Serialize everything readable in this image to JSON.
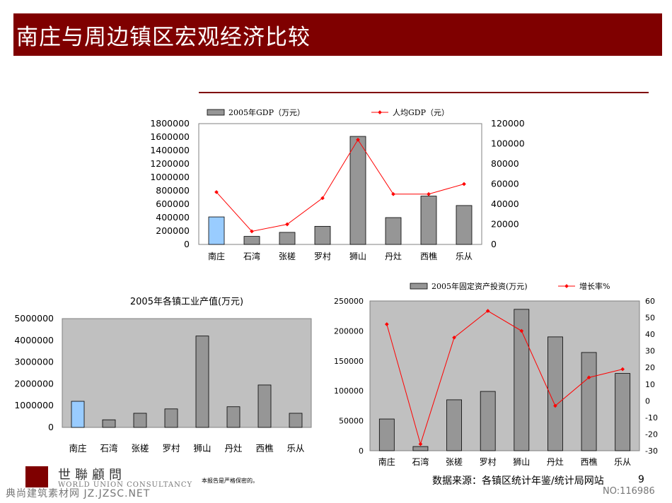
{
  "header": {
    "title": "南庄与周边镇区宏观经济比较"
  },
  "footer": {
    "logo_cn": "世聯顧問",
    "logo_en": "WORLD UNION CONSULTANCY",
    "confidential": "本报告是严格保密的。",
    "source": "数据来源：各镇区统计年鉴/统计局网站",
    "page": "9",
    "watermark_left": "典尚建筑素材网 JZ.JZSC.NET",
    "watermark_right": "NO:116986"
  },
  "colors": {
    "bar": "#969696",
    "highlight_bar": "#99ccff",
    "line": "#ff0000",
    "plot_bg": "#c0c0c0",
    "brand": "#7f0000"
  },
  "chart_data": [
    {
      "id": "gdp",
      "type": "bar+line",
      "title": "",
      "categories": [
        "南庄",
        "石湾",
        "张槎",
        "罗村",
        "狮山",
        "丹灶",
        "西樵",
        "乐从"
      ],
      "highlight_category": "南庄",
      "series": [
        {
          "name": "2005年GDP（万元）",
          "type": "bar",
          "axis": "left",
          "values": [
            410000,
            120000,
            180000,
            270000,
            1610000,
            400000,
            720000,
            580000
          ]
        },
        {
          "name": "人均GDP（元）",
          "type": "line",
          "axis": "right",
          "values": [
            52000,
            13000,
            20000,
            46000,
            104000,
            50000,
            50000,
            60000
          ]
        }
      ],
      "ylim_left": [
        0,
        1800000
      ],
      "yticks_left": [
        "0",
        "200000",
        "400000",
        "600000",
        "800000",
        "1000000",
        "1200000",
        "1400000",
        "1600000",
        "1800000"
      ],
      "ylim_right": [
        0,
        120000
      ],
      "yticks_right": [
        "0",
        "20000",
        "40000",
        "60000",
        "80000",
        "100000",
        "120000"
      ],
      "plot_background": "white"
    },
    {
      "id": "industry",
      "type": "bar",
      "title": "2005年各镇工业产值(万元)",
      "categories": [
        "南庄",
        "石湾",
        "张槎",
        "罗村",
        "狮山",
        "丹灶",
        "西樵",
        "乐从"
      ],
      "highlight_category": "南庄",
      "series": [
        {
          "name": "2005年各镇工业产值(万元)",
          "type": "bar",
          "axis": "left",
          "values": [
            1200000,
            350000,
            650000,
            850000,
            4200000,
            950000,
            1950000,
            650000
          ]
        }
      ],
      "ylim_left": [
        0,
        5000000
      ],
      "yticks_left": [
        "0",
        "1000000",
        "2000000",
        "3000000",
        "4000000",
        "5000000"
      ],
      "plot_background": "gray"
    },
    {
      "id": "investment",
      "type": "bar+line",
      "title": "",
      "categories": [
        "南庄",
        "石湾",
        "张槎",
        "罗村",
        "狮山",
        "丹灶",
        "西樵",
        "乐从"
      ],
      "series": [
        {
          "name": "2005年固定资产投资(万元)",
          "type": "bar",
          "axis": "left",
          "values": [
            53000,
            7000,
            85000,
            99000,
            236000,
            190000,
            164000,
            129000
          ]
        },
        {
          "name": "增长率%",
          "type": "line",
          "axis": "right",
          "values": [
            46,
            -26,
            38,
            54,
            42,
            -3,
            14,
            19
          ]
        }
      ],
      "ylim_left": [
        0,
        250000
      ],
      "yticks_left": [
        "0",
        "50000",
        "100000",
        "150000",
        "200000",
        "250000"
      ],
      "ylim_right": [
        -30,
        60
      ],
      "yticks_right": [
        "-30",
        "-20",
        "-10",
        "0",
        "10",
        "20",
        "30",
        "40",
        "50",
        "60"
      ],
      "plot_background": "gray"
    }
  ]
}
